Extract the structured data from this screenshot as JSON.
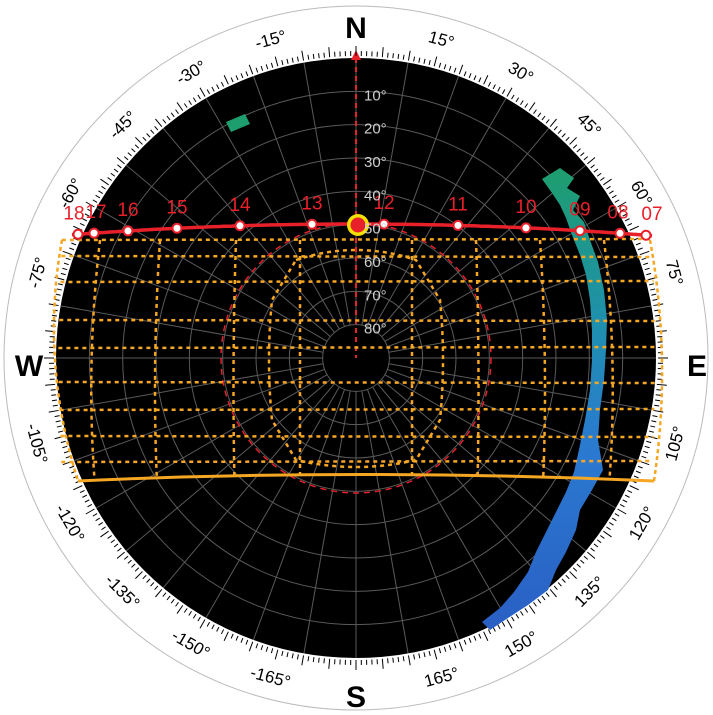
{
  "cardinals": {
    "north": "N",
    "south": "S",
    "east": "E",
    "west": "W"
  },
  "azimuth_labels": [
    {
      "az": 15,
      "text": "15°"
    },
    {
      "az": 30,
      "text": "30°"
    },
    {
      "az": 45,
      "text": "45°"
    },
    {
      "az": 60,
      "text": "60°"
    },
    {
      "az": 75,
      "text": "75°"
    },
    {
      "az": 105,
      "text": "105°"
    },
    {
      "az": 120,
      "text": "120°"
    },
    {
      "az": 135,
      "text": "135°"
    },
    {
      "az": 150,
      "text": "150°"
    },
    {
      "az": 165,
      "text": "165°"
    },
    {
      "az": -165,
      "text": "-165°"
    },
    {
      "az": -150,
      "text": "-150°"
    },
    {
      "az": -135,
      "text": "-135°"
    },
    {
      "az": -120,
      "text": "-120°"
    },
    {
      "az": -105,
      "text": "-105°"
    },
    {
      "az": -75,
      "text": "-75°"
    },
    {
      "az": -60,
      "text": "-60°"
    },
    {
      "az": -45,
      "text": "-45°"
    },
    {
      "az": -30,
      "text": "-30°"
    },
    {
      "az": -15,
      "text": "-15°"
    }
  ],
  "altitude_labels": [
    "10°",
    "20°",
    "30°",
    "40°",
    "50°",
    "60°",
    "70°",
    "80°"
  ],
  "sun_path": {
    "color": "#e8202a",
    "hours": [
      "18",
      "17",
      "16",
      "15",
      "14",
      "13",
      "12",
      "11",
      "10",
      "09",
      "08",
      "07"
    ]
  },
  "colors": {
    "sky": "#000000",
    "ring": "#ffffff",
    "grid": "#5a5a5a",
    "pole": "#e8202a",
    "obstruction": "#f5a623",
    "sun_marker": "#e8202a",
    "sun_ring": "#f3e000",
    "green_band": "#1e9e6e",
    "blue_band": "#2a5fc4"
  }
}
